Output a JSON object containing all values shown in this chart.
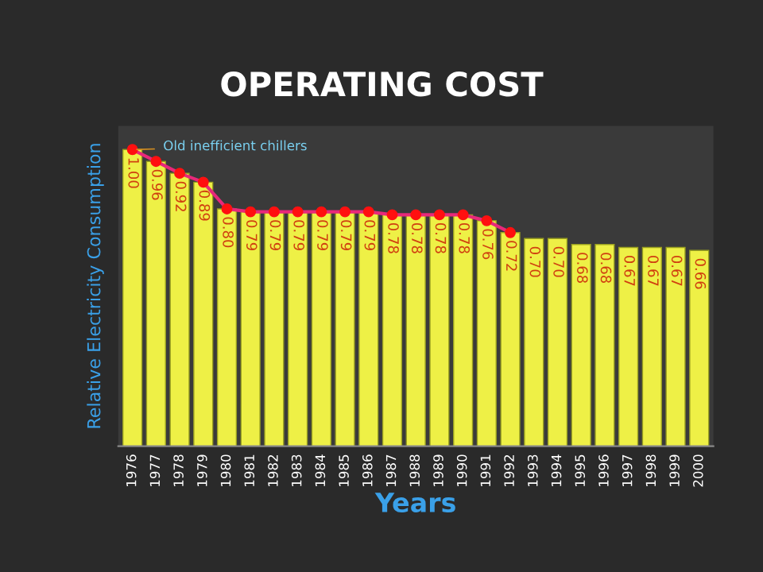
{
  "chart_data": {
    "type": "bar",
    "title": "OPERATING COST",
    "xlabel": "Years",
    "ylabel": "Relative Electricity Consumption",
    "ylim": [
      0,
      1.08
    ],
    "tick_labels": "x",
    "categories": [
      "1976",
      "1977",
      "1978",
      "1979",
      "1980",
      "1981",
      "1982",
      "1983",
      "1984",
      "1985",
      "1986",
      "1987",
      "1988",
      "1989",
      "1990",
      "1991",
      "1992",
      "1993",
      "1994",
      "1995",
      "1996",
      "1997",
      "1998",
      "1999",
      "2000"
    ],
    "series": [
      {
        "color": "#eef046",
        "values": [
          1.0,
          0.96,
          0.92,
          0.89,
          0.8,
          0.79,
          0.79,
          0.79,
          0.79,
          0.79,
          0.79,
          0.78,
          0.78,
          0.78,
          0.78,
          0.76,
          0.72,
          0.7,
          0.7,
          0.68,
          0.68,
          0.67,
          0.67,
          0.67,
          0.66
        ],
        "value_labels": [
          "1.00",
          "0.96",
          "0.92",
          "0.89",
          "0.80",
          "0.79",
          "0.79",
          "0.79",
          "0.79",
          "0.79",
          "0.79",
          "0.78",
          "0.78",
          "0.78",
          "0.78",
          "0.76",
          "0.72",
          "0.70",
          "0.70",
          "0.68",
          "0.68",
          "0.67",
          "0.67",
          "0.67",
          "0.66"
        ]
      },
      {
        "type": "line",
        "color": "#e8287a",
        "marker": "circle",
        "values": [
          1.0,
          0.96,
          0.92,
          0.89,
          0.8,
          0.79,
          0.79,
          0.79,
          0.79,
          0.79,
          0.79,
          0.78,
          0.78,
          0.78,
          0.78,
          0.76,
          0.72,
          null,
          null,
          null,
          null,
          null,
          null,
          null,
          null
        ]
      }
    ],
    "annotations": [
      {
        "text": "Old inefficient chillers",
        "x": "1976",
        "y": 1.0
      }
    ]
  }
}
